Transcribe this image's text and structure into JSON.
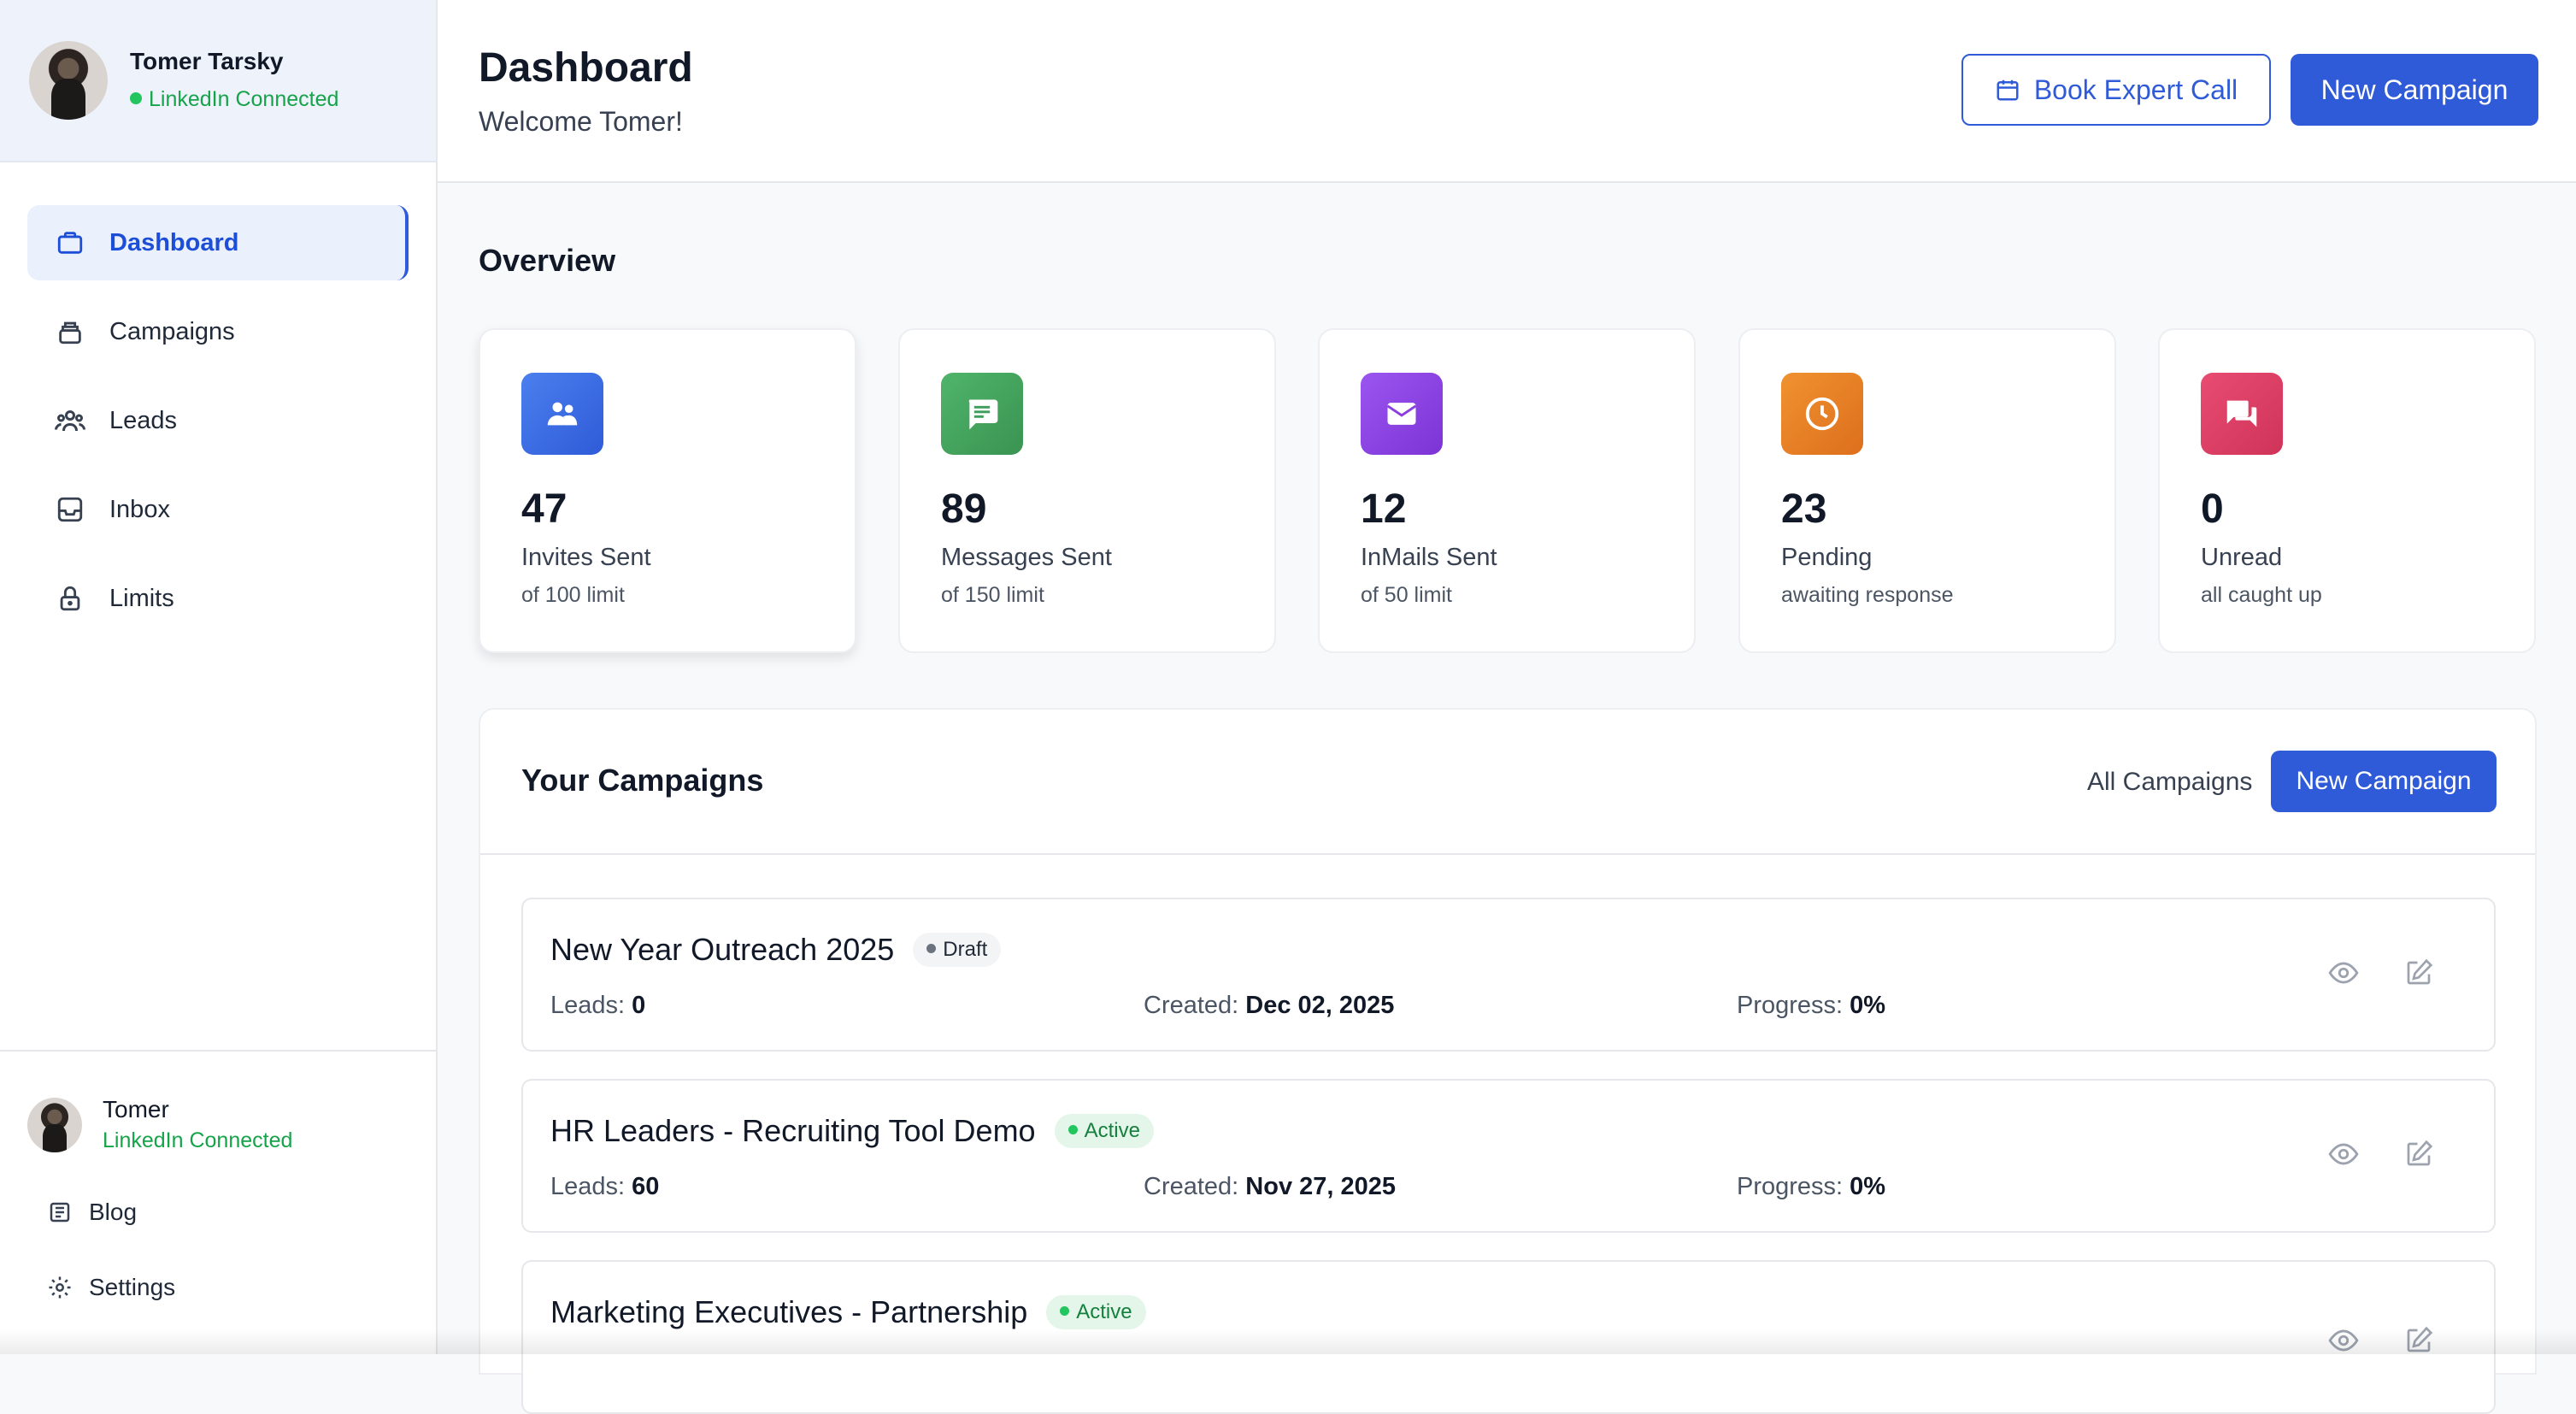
{
  "user": {
    "full_name": "Tomer Tarsky",
    "short_name": "Tomer",
    "status": "LinkedIn Connected"
  },
  "sidebar": {
    "items": [
      {
        "label": "Dashboard",
        "icon": "briefcase-icon",
        "active": true
      },
      {
        "label": "Campaigns",
        "icon": "stack-icon",
        "active": false
      },
      {
        "label": "Leads",
        "icon": "people-icon",
        "active": false
      },
      {
        "label": "Inbox",
        "icon": "inbox-icon",
        "active": false
      },
      {
        "label": "Limits",
        "icon": "lock-icon",
        "active": false
      }
    ],
    "links": [
      {
        "label": "Blog",
        "icon": "newspaper-icon"
      },
      {
        "label": "Settings",
        "icon": "gear-icon"
      }
    ]
  },
  "header": {
    "title": "Dashboard",
    "welcome": "Welcome Tomer!",
    "book_call": "Book Expert Call",
    "new_campaign": "New Campaign"
  },
  "overview": {
    "title": "Overview",
    "stats": [
      {
        "value": "47",
        "label": "Invites Sent",
        "sub": "of 100 limit",
        "icon": "people-icon",
        "color": "#3b6fe0"
      },
      {
        "value": "89",
        "label": "Messages Sent",
        "sub": "of 150 limit",
        "icon": "message-icon",
        "color": "#3f9e5b"
      },
      {
        "value": "12",
        "label": "InMails Sent",
        "sub": "of 50 limit",
        "icon": "mail-icon",
        "color": "#8b3fe0"
      },
      {
        "value": "23",
        "label": "Pending",
        "sub": "awaiting response",
        "icon": "clock-icon",
        "color": "#e57f26"
      },
      {
        "value": "0",
        "label": "Unread",
        "sub": "all caught up",
        "icon": "chat-icon",
        "color": "#dc3f64"
      }
    ]
  },
  "campaigns": {
    "title": "Your Campaigns",
    "all_link": "All Campaigns",
    "new_button": "New Campaign",
    "labels": {
      "leads": "Leads:",
      "created": "Created:",
      "progress": "Progress:"
    },
    "rows": [
      {
        "name": "New Year Outreach 2025",
        "status": "Draft",
        "leads": "0",
        "created": "Dec 02, 2025",
        "progress": "0%"
      },
      {
        "name": "HR Leaders - Recruiting Tool Demo",
        "status": "Active",
        "leads": "60",
        "created": "Nov 27, 2025",
        "progress": "0%"
      },
      {
        "name": "Marketing Executives - Partnership",
        "status": "Active"
      }
    ]
  },
  "colors": {
    "accent": "#2f5bd8",
    "success": "#16a34a"
  }
}
